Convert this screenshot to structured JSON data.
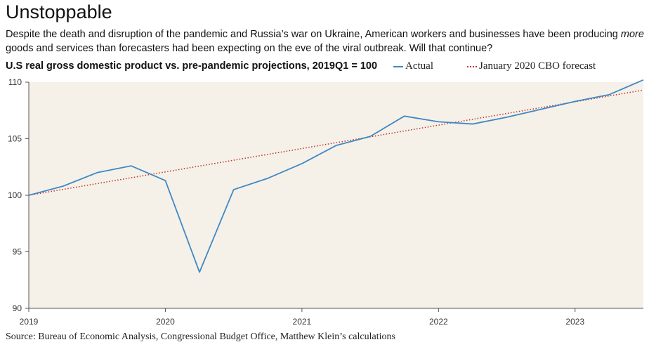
{
  "header": {
    "title": "Unstoppable",
    "subtitle_part1": "Despite the death and disruption of the pandemic and Russia’s war on Ukraine, American workers and businesses have been producing ",
    "subtitle_emph": "more",
    "subtitle_part2": " goods and services than forecasters had been expecting on the eve of the viral outbreak. Will that continue?"
  },
  "source": "Source: Bureau of Economic Analysis, Congressional Budget Office, Matthew Klein’s calculations",
  "colors": {
    "actual": "#3f88c5",
    "forecast": "#c0392b",
    "plot_bg": "#f5f1e9"
  },
  "chart_data": {
    "type": "line",
    "title": "U.S real gross domestic product vs. pre-pandemic projections, 2019Q1 = 100",
    "xlabel": "",
    "ylabel": "",
    "xlim": [
      2019.0,
      2023.5
    ],
    "ylim": [
      90,
      110
    ],
    "x_ticks": [
      2019,
      2020,
      2021,
      2022,
      2023
    ],
    "y_ticks": [
      90,
      95,
      100,
      105,
      110
    ],
    "grid": false,
    "legend": "top",
    "series": [
      {
        "name": "Actual",
        "style": "solid",
        "x": [
          2019.0,
          2019.25,
          2019.5,
          2019.75,
          2020.0,
          2020.25,
          2020.5,
          2020.75,
          2021.0,
          2021.25,
          2021.5,
          2021.75,
          2022.0,
          2022.25,
          2022.5,
          2022.75,
          2023.0,
          2023.25,
          2023.5
        ],
        "values": [
          100.0,
          100.8,
          102.0,
          102.6,
          101.3,
          93.2,
          100.5,
          101.5,
          102.8,
          104.4,
          105.2,
          107.0,
          106.5,
          106.3,
          106.9,
          107.6,
          108.3,
          108.9,
          110.2
        ]
      },
      {
        "name": "January 2020 CBO forecast",
        "style": "dotted",
        "x": [
          2019.0,
          2023.5
        ],
        "values": [
          100.0,
          109.3
        ]
      }
    ]
  }
}
